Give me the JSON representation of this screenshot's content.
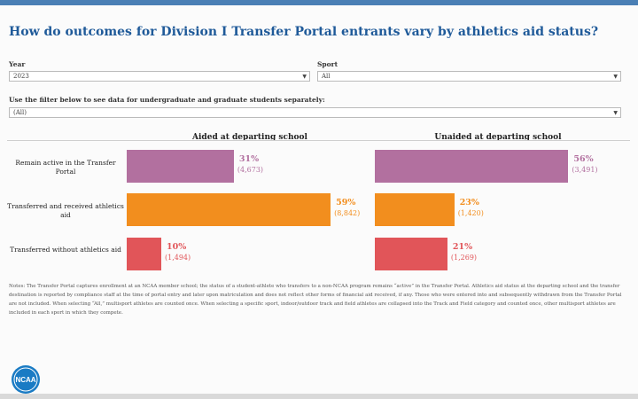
{
  "title": "How do outcomes for Division I Transfer Portal entrants vary by athletics aid status?",
  "filters": {
    "year_label": "Year",
    "year_value": "2023",
    "sport_label": "Sport",
    "sport_value": "All",
    "level_label": "Use the filter below to see data for undergraduate and graduate students separately:",
    "level_value": "(All)"
  },
  "colors": {
    "active": "#b2709f",
    "transferred_aid": "#f28e1e",
    "transferred_no_aid": "#e15559",
    "title": "#1f5a99"
  },
  "chart_data": {
    "type": "bar",
    "orientation": "horizontal",
    "title": "How do outcomes for Division I Transfer Portal entrants vary by athletics aid status?",
    "categories": [
      "Remain active in the Transfer Portal",
      "Transferred and received athletics aid",
      "Transferred without athletics aid"
    ],
    "series": [
      {
        "name": "Aided at departing school",
        "values": [
          31,
          59,
          10
        ],
        "labels": [
          "31%",
          "59%",
          "10%"
        ],
        "counts": [
          "(4,673)",
          "(8,842)",
          "(1,494)"
        ]
      },
      {
        "name": "Unaided at departing school",
        "values": [
          56,
          23,
          21
        ],
        "labels": [
          "56%",
          "23%",
          "21%"
        ],
        "counts": [
          "(3,491)",
          "(1,420)",
          "(1,269)"
        ]
      }
    ],
    "unit": "%",
    "xlim": [
      0,
      100
    ]
  },
  "notes": "Notes: The Transfer Portal captures enrollment at an NCAA member school; the status of a student-athlete who transfers to a non-NCAA program remains “active” in the Transfer Portal. Athletics aid status at the departing school and the transfer destination is reported by compliance staff at the time of portal entry and later upon matriculation and does not reflect other forms of financial aid received, if any. Those who were entered into and subsequently withdrawn from the Transfer Portal are not included. When selecting “All,” multisport athletes are counted once. When selecting a specific sport, indoor/outdoor track and field athletes are collapsed into the Track and Field category and counted once, other multisport athletes are included in each sport in which they compete.",
  "logo_text": "NCAA"
}
